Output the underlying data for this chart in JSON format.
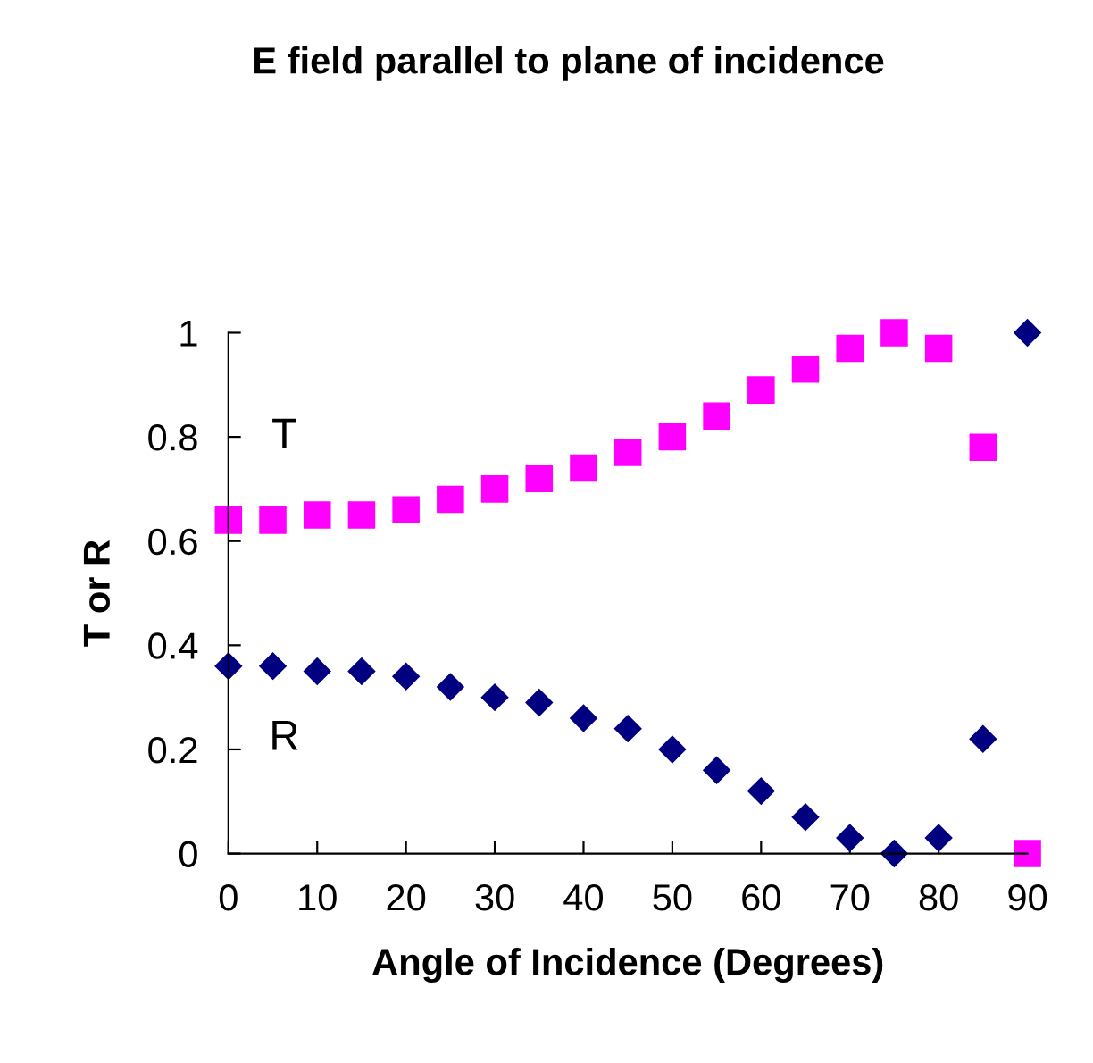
{
  "chart_data": {
    "type": "scatter",
    "title": "E field parallel to plane of incidence",
    "xlabel": "Angle of Incidence (Degrees)",
    "ylabel": "T or R",
    "x": [
      0,
      5,
      10,
      15,
      20,
      25,
      30,
      35,
      40,
      45,
      50,
      55,
      60,
      65,
      70,
      75,
      80,
      85,
      90
    ],
    "series": [
      {
        "name": "T",
        "color": "#ff00ff",
        "marker": "square",
        "values": [
          0.64,
          0.64,
          0.65,
          0.65,
          0.66,
          0.68,
          0.7,
          0.72,
          0.74,
          0.77,
          0.8,
          0.84,
          0.89,
          0.93,
          0.97,
          1.0,
          0.97,
          0.78,
          0.0
        ]
      },
      {
        "name": "R",
        "color": "#000080",
        "marker": "diamond",
        "values": [
          0.36,
          0.36,
          0.35,
          0.35,
          0.34,
          0.32,
          0.3,
          0.29,
          0.26,
          0.24,
          0.2,
          0.16,
          0.12,
          0.07,
          0.03,
          0.0,
          0.03,
          0.22,
          1.0
        ]
      }
    ],
    "xlim": [
      0,
      90
    ],
    "xticks": [
      0,
      10,
      20,
      30,
      40,
      50,
      60,
      70,
      80,
      90
    ],
    "ylim": [
      0,
      1
    ],
    "yticks": [
      0,
      0.2,
      0.4,
      0.6,
      0.8,
      1
    ],
    "grid": false,
    "legend": false
  }
}
